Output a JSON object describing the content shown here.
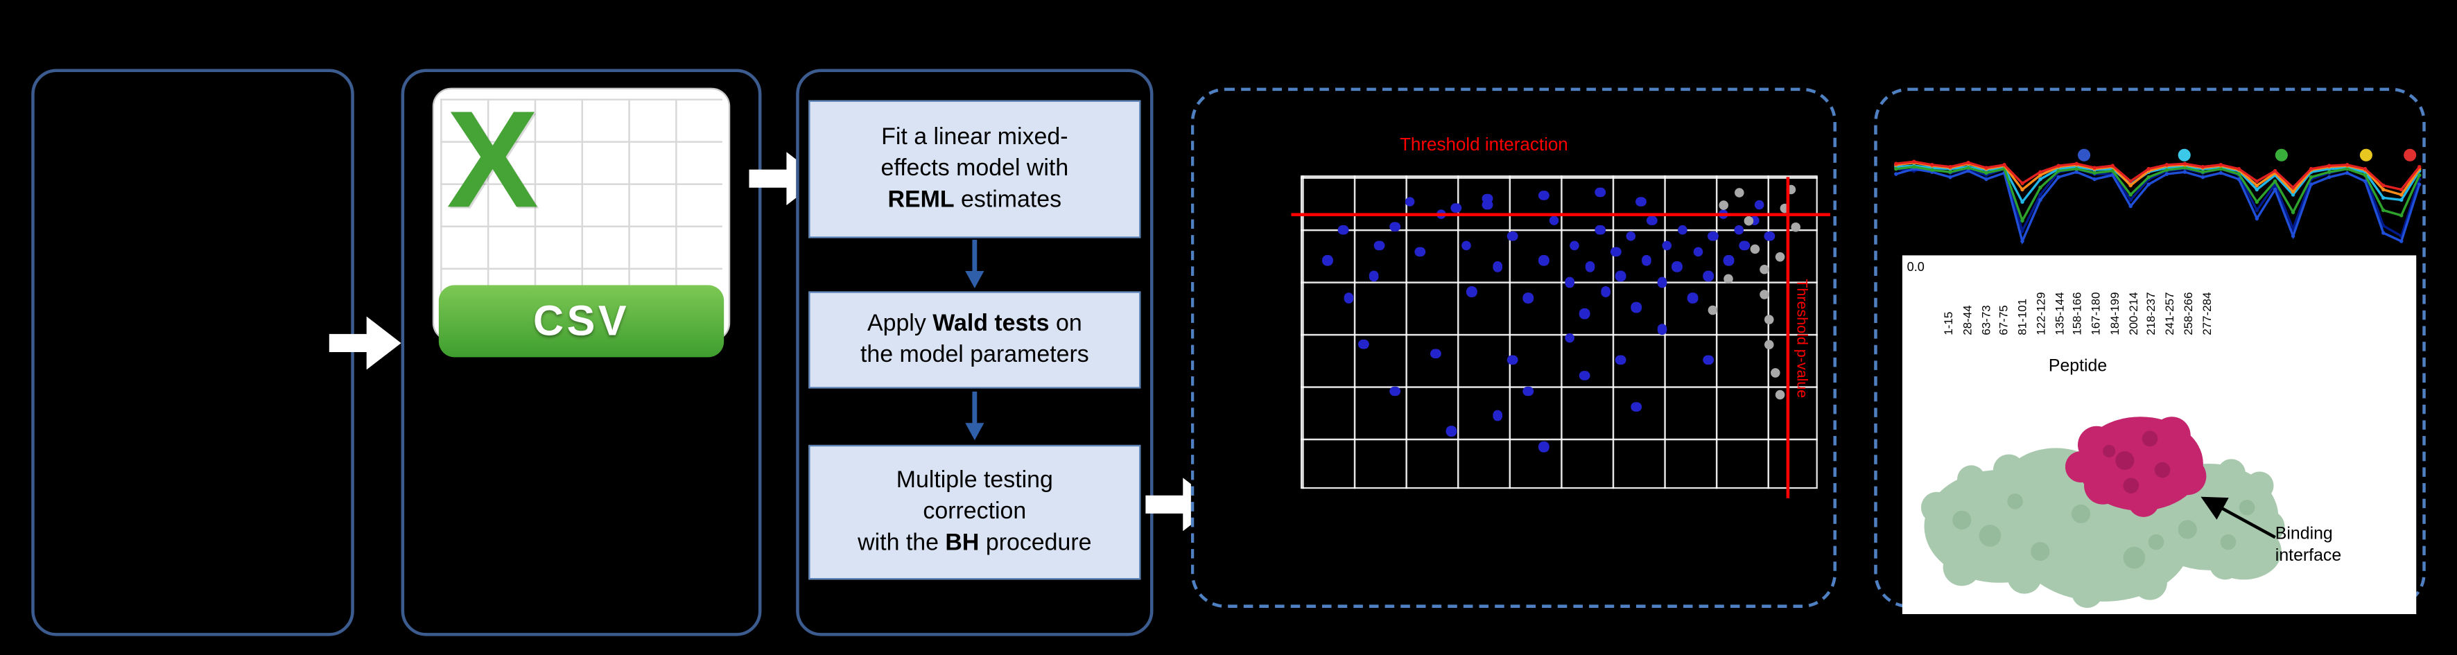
{
  "csv_panel": {
    "icon_letter": "X",
    "icon_label": "CSV"
  },
  "method_panel": {
    "steps": [
      {
        "before": "Fit a linear mixed-\neffects model with\n",
        "bold": "REML",
        "after": " estimates"
      },
      {
        "before": "Apply ",
        "bold": "Wald tests",
        "after": " on\nthe model parameters"
      },
      {
        "before": "Multiple testing\ncorrection\nwith the ",
        "bold": "BH",
        "after": " procedure"
      }
    ]
  },
  "volcano": {
    "type": "scatter",
    "title": "Threshold interaction",
    "y_threshold_label": "Threshold p-value",
    "colors": {
      "significant": "#2424cc",
      "carryover": "#a9a9a9",
      "threshold": "#ff0000",
      "grid": "#ffffff"
    },
    "points_blue": [
      [
        18,
        16
      ],
      [
        23,
        24
      ],
      [
        27,
        12
      ],
      [
        32,
        22
      ],
      [
        36,
        9
      ],
      [
        33,
        37
      ],
      [
        38,
        29
      ],
      [
        41,
        19
      ],
      [
        44,
        39
      ],
      [
        47,
        27
      ],
      [
        49,
        14
      ],
      [
        52,
        34
      ],
      [
        53,
        22
      ],
      [
        55,
        44
      ],
      [
        56,
        29
      ],
      [
        58,
        17
      ],
      [
        59,
        37
      ],
      [
        61,
        24
      ],
      [
        62,
        32
      ],
      [
        64,
        19
      ],
      [
        65,
        42
      ],
      [
        67,
        27
      ],
      [
        68,
        14
      ],
      [
        70,
        34
      ],
      [
        71,
        22
      ],
      [
        73,
        29
      ],
      [
        74,
        17
      ],
      [
        76,
        39
      ],
      [
        77,
        24
      ],
      [
        79,
        32
      ],
      [
        80,
        19
      ],
      [
        82,
        12
      ],
      [
        83,
        27
      ],
      [
        85,
        17
      ],
      [
        86,
        22
      ],
      [
        70,
        49
      ],
      [
        52,
        52
      ],
      [
        41,
        59
      ],
      [
        44,
        69
      ],
      [
        26,
        57
      ],
      [
        12,
        54
      ],
      [
        18,
        69
      ],
      [
        38,
        77
      ],
      [
        55,
        64
      ],
      [
        62,
        59
      ],
      [
        29,
        82
      ],
      [
        47,
        87
      ],
      [
        65,
        74
      ],
      [
        79,
        59
      ],
      [
        88,
        14
      ],
      [
        89,
        9
      ],
      [
        91,
        19
      ],
      [
        5,
        27
      ],
      [
        8,
        17
      ],
      [
        9,
        39
      ],
      [
        14,
        32
      ],
      [
        15,
        22
      ],
      [
        36,
        7
      ],
      [
        58,
        5
      ],
      [
        21,
        8
      ],
      [
        47,
        6
      ],
      [
        30,
        10
      ],
      [
        66,
        8
      ]
    ],
    "points_gray": [
      [
        82,
        9
      ],
      [
        85,
        5
      ],
      [
        87,
        14
      ],
      [
        88,
        23
      ],
      [
        90,
        30
      ],
      [
        90,
        38
      ],
      [
        91,
        46
      ],
      [
        91,
        54
      ],
      [
        92,
        63
      ],
      [
        93,
        70
      ],
      [
        94,
        10
      ],
      [
        83,
        33
      ],
      [
        80,
        43
      ],
      [
        95,
        4
      ],
      [
        96,
        16
      ],
      [
        93,
        26
      ]
    ]
  },
  "profile": {
    "type": "line",
    "y_tick": "0.0",
    "x_label": "Peptide",
    "x_ticks": [
      "1-15",
      "28-44",
      "63-73",
      "67-75",
      "81-101",
      "122-129",
      "135-144",
      "158-166",
      "167-180",
      "184-199",
      "200-214",
      "218-237",
      "241-257",
      "258-266",
      "277-284"
    ],
    "legend_dot_colors": [
      "#2f55c8",
      "#3cc8e8",
      "#3aae3a",
      "#e8c820",
      "#e03030"
    ],
    "series": [
      {
        "color": "#001a8c",
        "values": [
          0.3,
          0.32,
          0.28,
          0.34,
          0.3,
          0.36,
          0.3,
          0.9,
          0.55,
          0.33,
          0.3,
          0.35,
          0.35,
          0.6,
          0.4,
          0.32,
          0.3,
          0.34,
          0.3,
          0.36,
          0.7,
          0.45,
          0.88,
          0.4,
          0.34,
          0.3,
          0.36,
          0.85,
          0.95,
          0.4
        ]
      },
      {
        "color": "#1f4fd8",
        "values": [
          0.35,
          0.3,
          0.33,
          0.38,
          0.32,
          0.4,
          0.34,
          1.0,
          0.6,
          0.38,
          0.33,
          0.4,
          0.36,
          0.66,
          0.45,
          0.35,
          0.33,
          0.38,
          0.34,
          0.4,
          0.78,
          0.5,
          0.95,
          0.45,
          0.38,
          0.34,
          0.42,
          0.92,
          1.0,
          0.45
        ]
      },
      {
        "color": "#22b7e6",
        "values": [
          0.28,
          0.27,
          0.29,
          0.3,
          0.28,
          0.31,
          0.29,
          0.62,
          0.4,
          0.3,
          0.28,
          0.31,
          0.3,
          0.45,
          0.33,
          0.29,
          0.28,
          0.3,
          0.29,
          0.32,
          0.5,
          0.36,
          0.55,
          0.33,
          0.3,
          0.29,
          0.33,
          0.58,
          0.6,
          0.32
        ]
      },
      {
        "color": "#2da22d",
        "values": [
          0.3,
          0.28,
          0.31,
          0.33,
          0.29,
          0.34,
          0.3,
          0.8,
          0.48,
          0.32,
          0.3,
          0.34,
          0.32,
          0.55,
          0.38,
          0.31,
          0.29,
          0.33,
          0.3,
          0.35,
          0.62,
          0.42,
          0.72,
          0.38,
          0.33,
          0.3,
          0.36,
          0.7,
          0.75,
          0.36
        ]
      },
      {
        "color": "#ff8c1a",
        "values": [
          0.26,
          0.24,
          0.27,
          0.29,
          0.25,
          0.3,
          0.27,
          0.5,
          0.36,
          0.28,
          0.26,
          0.3,
          0.28,
          0.46,
          0.32,
          0.27,
          0.26,
          0.29,
          0.27,
          0.31,
          0.46,
          0.34,
          0.52,
          0.31,
          0.28,
          0.27,
          0.31,
          0.5,
          0.55,
          0.3
        ]
      },
      {
        "color": "#e32020",
        "values": [
          0.25,
          0.23,
          0.26,
          0.28,
          0.24,
          0.29,
          0.26,
          0.44,
          0.33,
          0.27,
          0.25,
          0.29,
          0.27,
          0.42,
          0.3,
          0.26,
          0.25,
          0.28,
          0.26,
          0.3,
          0.42,
          0.32,
          0.48,
          0.3,
          0.27,
          0.26,
          0.3,
          0.46,
          0.5,
          0.28
        ]
      }
    ]
  },
  "structure": {
    "annotation": "Binding interface",
    "surface_color": "#a9c9ae",
    "surface_shade": "#7fa888",
    "interface_color": "#c4256d",
    "interface_shade": "#7e1145"
  }
}
